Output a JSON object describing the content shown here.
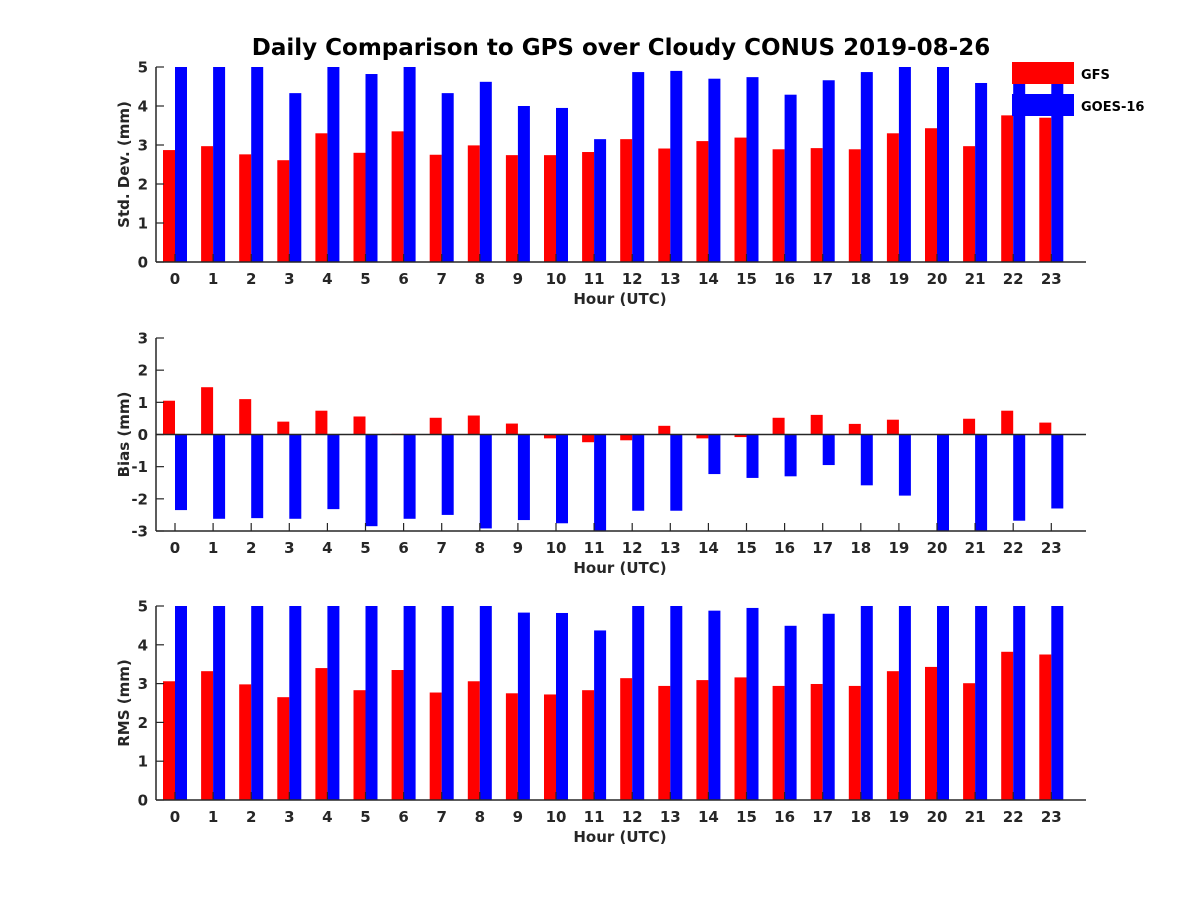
{
  "figure_title": "Daily Comparison to GPS over Cloudy CONUS 2019-08-26",
  "legend": [
    {
      "label": "GFS",
      "color": "#ff0000"
    },
    {
      "label": "GOES-16",
      "color": "#0000ff"
    }
  ],
  "chart_data": [
    {
      "type": "bar",
      "title": "Daily Comparison to GPS over Cloudy CONUS 2019-08-26",
      "xlabel": "Hour (UTC)",
      "ylabel": "Std. Dev. (mm)",
      "ylim": [
        0,
        5
      ],
      "yticks": [
        "0",
        "1",
        "2",
        "3",
        "4",
        "5"
      ],
      "categories": [
        "0",
        "1",
        "2",
        "3",
        "4",
        "5",
        "6",
        "7",
        "8",
        "9",
        "10",
        "11",
        "12",
        "13",
        "14",
        "15",
        "16",
        "17",
        "18",
        "19",
        "20",
        "21",
        "22",
        "23"
      ],
      "series": [
        {
          "name": "GFS",
          "color": "#ff0000",
          "values": [
            2.87,
            2.97,
            2.76,
            2.61,
            3.3,
            2.8,
            3.35,
            2.75,
            2.99,
            2.74,
            2.74,
            2.82,
            3.15,
            2.91,
            3.1,
            3.19,
            2.89,
            2.92,
            2.89,
            3.3,
            3.43,
            2.97,
            3.76,
            3.7
          ]
        },
        {
          "name": "GOES-16",
          "color": "#0000ff",
          "values": [
            5.0,
            5.0,
            5.0,
            4.33,
            5.0,
            4.82,
            5.0,
            4.33,
            4.62,
            4.0,
            3.95,
            3.15,
            4.87,
            4.9,
            4.7,
            4.74,
            4.29,
            4.66,
            4.87,
            5.0,
            5.0,
            4.59,
            5.0,
            4.62
          ]
        }
      ]
    },
    {
      "type": "bar",
      "xlabel": "Hour (UTC)",
      "ylabel": "Bias (mm)",
      "ylim": [
        -3,
        3
      ],
      "yticks": [
        "-3",
        "-2",
        "-1",
        "0",
        "1",
        "2",
        "3"
      ],
      "categories": [
        "0",
        "1",
        "2",
        "3",
        "4",
        "5",
        "6",
        "7",
        "8",
        "9",
        "10",
        "11",
        "12",
        "13",
        "14",
        "15",
        "16",
        "17",
        "18",
        "19",
        "20",
        "21",
        "22",
        "23"
      ],
      "series": [
        {
          "name": "GFS",
          "color": "#ff0000",
          "values": [
            1.05,
            1.47,
            1.1,
            0.4,
            0.74,
            0.56,
            0.02,
            0.52,
            0.59,
            0.34,
            -0.12,
            -0.24,
            -0.18,
            0.27,
            -0.12,
            -0.08,
            0.52,
            0.61,
            0.33,
            0.46,
            0.0,
            0.49,
            0.74,
            0.37
          ]
        },
        {
          "name": "GOES-16",
          "color": "#0000ff",
          "values": [
            -2.35,
            -2.62,
            -2.6,
            -2.62,
            -2.32,
            -2.85,
            -2.62,
            -2.5,
            -2.92,
            -2.66,
            -2.76,
            -3.0,
            -2.37,
            -2.37,
            -1.23,
            -1.35,
            -1.3,
            -0.95,
            -1.58,
            -1.9,
            -3.0,
            -3.0,
            -2.68,
            -2.3
          ]
        }
      ]
    },
    {
      "type": "bar",
      "xlabel": "Hour (UTC)",
      "ylabel": "RMS (mm)",
      "ylim": [
        0,
        5
      ],
      "yticks": [
        "0",
        "1",
        "2",
        "3",
        "4",
        "5"
      ],
      "categories": [
        "0",
        "1",
        "2",
        "3",
        "4",
        "5",
        "6",
        "7",
        "8",
        "9",
        "10",
        "11",
        "12",
        "13",
        "14",
        "15",
        "16",
        "17",
        "18",
        "19",
        "20",
        "21",
        "22",
        "23"
      ],
      "series": [
        {
          "name": "GFS",
          "color": "#ff0000",
          "values": [
            3.06,
            3.32,
            2.98,
            2.65,
            3.4,
            2.83,
            3.35,
            2.77,
            3.06,
            2.75,
            2.72,
            2.83,
            3.14,
            2.94,
            3.09,
            3.16,
            2.94,
            2.99,
            2.94,
            3.32,
            3.43,
            3.01,
            3.82,
            3.75
          ]
        },
        {
          "name": "GOES-16",
          "color": "#0000ff",
          "values": [
            5.0,
            5.0,
            5.0,
            5.0,
            5.0,
            5.0,
            5.0,
            5.0,
            5.0,
            4.83,
            4.82,
            4.37,
            5.0,
            5.0,
            4.88,
            4.95,
            4.49,
            4.8,
            5.0,
            5.0,
            5.0,
            5.0,
            5.0,
            5.0
          ]
        }
      ]
    }
  ]
}
